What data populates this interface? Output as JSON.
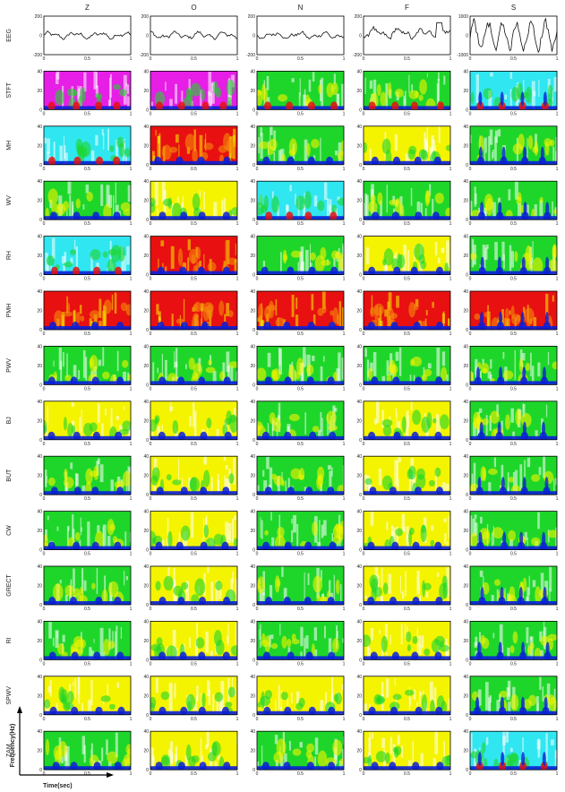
{
  "chart_data": {
    "type": "heatmap",
    "columns": [
      "Z",
      "O",
      "N",
      "F",
      "S"
    ],
    "row_labels": [
      "EEG",
      "STFT",
      "MH",
      "WV",
      "RH",
      "PMH",
      "PWV",
      "BJ",
      "BUT",
      "CW",
      "GRECT",
      "RI",
      "SPWV",
      "ZAM"
    ],
    "eeg_ylims": [
      [
        -200,
        200
      ],
      [
        -200,
        200
      ],
      [
        -200,
        200
      ],
      [
        -200,
        200
      ],
      [
        -1000,
        1000
      ]
    ],
    "eeg_yticks": [
      [
        "200",
        "0",
        "-200"
      ],
      [
        "200",
        "0",
        "-200"
      ],
      [
        "200",
        "0",
        "-200"
      ],
      [
        "200",
        "0",
        "-200"
      ],
      [
        "1000",
        "0",
        "-1000"
      ]
    ],
    "tf_ylim": [
      0,
      40
    ],
    "tf_yticks": [
      "40",
      "20",
      "0"
    ],
    "xlim": [
      0,
      1
    ],
    "xticks": [
      "0",
      "0.5",
      "1"
    ],
    "axis_labels": {
      "y": "Frequency(Hz)",
      "x": "Time(sec)"
    },
    "palette": {
      "white": "#ffffff",
      "blue": "#0a1fd8",
      "cyan": "#30e6f0",
      "green": "#1ed62a",
      "lime": "#7be03a",
      "yellow": "#f4f400",
      "orange": "#f58a0a",
      "red": "#e81010",
      "magenta": "#e61ee6",
      "navy": "#14108a"
    },
    "row_styles": {
      "STFT": [
        "magenta",
        "magenta",
        "green",
        "green",
        "cyan"
      ],
      "MH": [
        "cyan",
        "red",
        "green",
        "yellow",
        "green"
      ],
      "WV": [
        "green",
        "yellow",
        "cyan",
        "green",
        "green"
      ],
      "RH": [
        "cyan",
        "red",
        "green",
        "yellow",
        "green"
      ],
      "PMH": [
        "red",
        "red",
        "red",
        "red",
        "red"
      ],
      "PWV": [
        "green",
        "green",
        "green",
        "green",
        "green"
      ],
      "BJ": [
        "yellow",
        "yellow",
        "green",
        "yellow",
        "green"
      ],
      "BUT": [
        "green",
        "yellow",
        "green",
        "yellow",
        "green"
      ],
      "CW": [
        "green",
        "yellow",
        "green",
        "yellow",
        "green"
      ],
      "GRECT": [
        "green",
        "yellow",
        "green",
        "yellow",
        "green"
      ],
      "RI": [
        "green",
        "yellow",
        "green",
        "yellow",
        "green"
      ],
      "SPWV": [
        "yellow",
        "yellow",
        "yellow",
        "yellow",
        "green"
      ],
      "ZAM": [
        "green",
        "yellow",
        "green",
        "yellow",
        "cyan"
      ]
    }
  }
}
